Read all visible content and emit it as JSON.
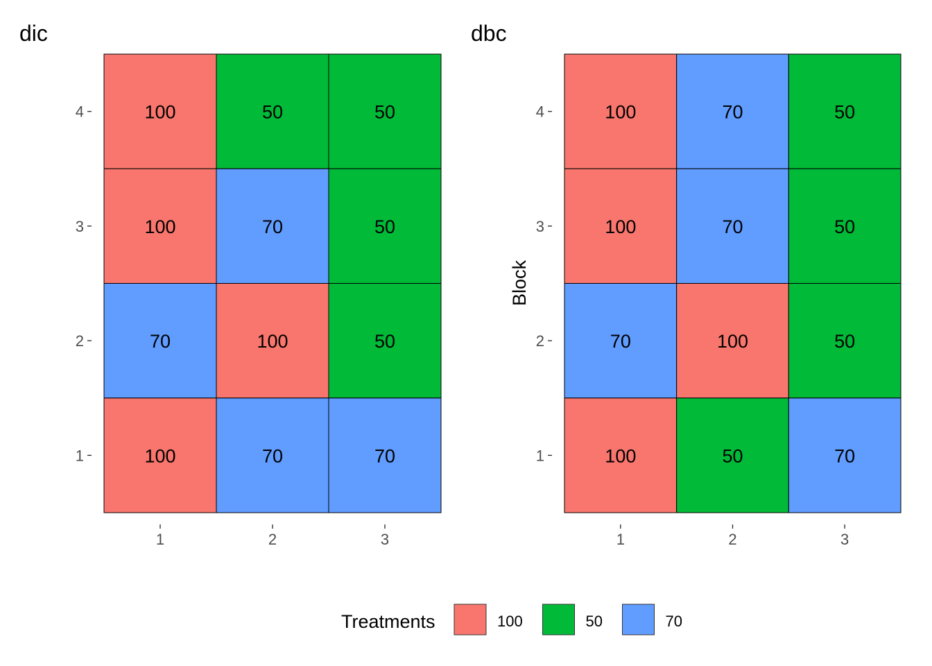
{
  "chart_data": [
    {
      "type": "heatmap",
      "title": "dic",
      "xlabel": "",
      "ylabel": "",
      "x_categories": [
        "1",
        "2",
        "3"
      ],
      "y_categories": [
        "1",
        "2",
        "3",
        "4"
      ],
      "cells": [
        {
          "x": "1",
          "y": "4",
          "value": "100"
        },
        {
          "x": "2",
          "y": "4",
          "value": "50"
        },
        {
          "x": "3",
          "y": "4",
          "value": "50"
        },
        {
          "x": "1",
          "y": "3",
          "value": "100"
        },
        {
          "x": "2",
          "y": "3",
          "value": "70"
        },
        {
          "x": "3",
          "y": "3",
          "value": "50"
        },
        {
          "x": "1",
          "y": "2",
          "value": "70"
        },
        {
          "x": "2",
          "y": "2",
          "value": "100"
        },
        {
          "x": "3",
          "y": "2",
          "value": "50"
        },
        {
          "x": "1",
          "y": "1",
          "value": "100"
        },
        {
          "x": "2",
          "y": "1",
          "value": "70"
        },
        {
          "x": "3",
          "y": "1",
          "value": "70"
        }
      ]
    },
    {
      "type": "heatmap",
      "title": "dbc",
      "xlabel": "",
      "ylabel": "Block",
      "x_categories": [
        "1",
        "2",
        "3"
      ],
      "y_categories": [
        "1",
        "2",
        "3",
        "4"
      ],
      "cells": [
        {
          "x": "1",
          "y": "4",
          "value": "100"
        },
        {
          "x": "2",
          "y": "4",
          "value": "70"
        },
        {
          "x": "3",
          "y": "4",
          "value": "50"
        },
        {
          "x": "1",
          "y": "3",
          "value": "100"
        },
        {
          "x": "2",
          "y": "3",
          "value": "70"
        },
        {
          "x": "3",
          "y": "3",
          "value": "50"
        },
        {
          "x": "1",
          "y": "2",
          "value": "70"
        },
        {
          "x": "2",
          "y": "2",
          "value": "100"
        },
        {
          "x": "3",
          "y": "2",
          "value": "50"
        },
        {
          "x": "1",
          "y": "1",
          "value": "100"
        },
        {
          "x": "2",
          "y": "1",
          "value": "50"
        },
        {
          "x": "3",
          "y": "1",
          "value": "70"
        }
      ]
    }
  ],
  "legend": {
    "title": "Treatments",
    "position": "bottom",
    "items": [
      {
        "label": "100",
        "color": "#F8766D"
      },
      {
        "label": "50",
        "color": "#00BA38"
      },
      {
        "label": "70",
        "color": "#619CFF"
      }
    ]
  }
}
